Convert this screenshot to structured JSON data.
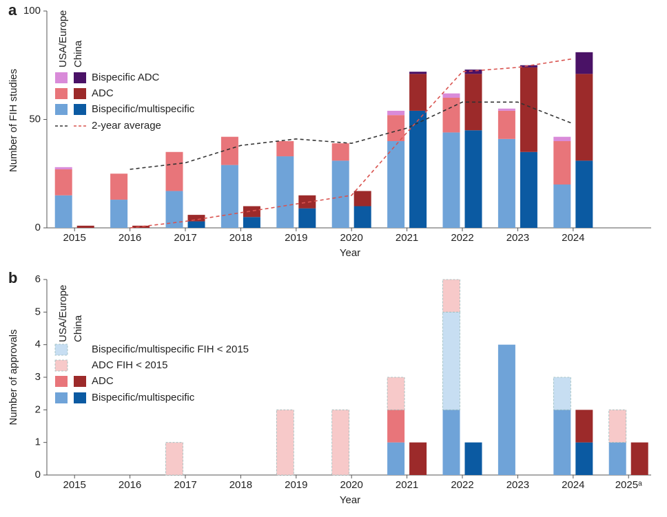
{
  "chart_data": [
    {
      "type": "bar",
      "panel_label": "a",
      "y_label": "Number of FIH studies",
      "x_label": "Year",
      "categories": [
        "2015",
        "2016",
        "2017",
        "2018",
        "2019",
        "2020",
        "2021",
        "2022",
        "2023",
        "2024"
      ],
      "ylim": [
        0,
        100
      ],
      "yticks": [
        0,
        50,
        100
      ],
      "stacked": true,
      "grid": false,
      "legend_groups": [
        "USA/Europe",
        "China"
      ],
      "series": [
        {
          "name": "Bispecific/multispecific",
          "group": "USA/Europe",
          "color": "#6fa3d8",
          "values": [
            15,
            13,
            17,
            29,
            33,
            31,
            40,
            44,
            41,
            20
          ]
        },
        {
          "name": "ADC",
          "group": "USA/Europe",
          "color": "#e8757a",
          "values": [
            12,
            12,
            18,
            13,
            7,
            8,
            12,
            16,
            13,
            20
          ]
        },
        {
          "name": "Bispecific ADC",
          "group": "USA/Europe",
          "color": "#d98bd9",
          "values": [
            1,
            0,
            0,
            0,
            0,
            0,
            2,
            2,
            1,
            2
          ]
        },
        {
          "name": "Bispecific/multispecific",
          "group": "China",
          "color": "#0b5aa2",
          "values": [
            0,
            0,
            3,
            5,
            9,
            10,
            54,
            45,
            35,
            31
          ]
        },
        {
          "name": "ADC",
          "group": "China",
          "color": "#9c2a2a",
          "values": [
            1,
            1,
            3,
            5,
            6,
            7,
            17,
            26,
            39,
            40
          ]
        },
        {
          "name": "Bispecific ADC",
          "group": "China",
          "color": "#4a1266",
          "values": [
            0,
            0,
            0,
            0,
            0,
            0,
            1,
            2,
            1,
            10
          ]
        },
        {
          "name": "2-year average",
          "group": "USA/Europe",
          "type": "line",
          "color": "#333333",
          "values": [
            null,
            27,
            30,
            38,
            41,
            39,
            46,
            58,
            58,
            48
          ]
        },
        {
          "name": "2-year average",
          "group": "China",
          "type": "line",
          "color": "#d9534f",
          "values": [
            null,
            0,
            3,
            7,
            11,
            15,
            44,
            72,
            74,
            78
          ]
        }
      ]
    },
    {
      "type": "bar",
      "panel_label": "b",
      "y_label": "Number of approvals",
      "x_label": "Year",
      "categories": [
        "2015",
        "2016",
        "2017",
        "2018",
        "2019",
        "2020",
        "2021",
        "2022",
        "2023",
        "2024",
        "2025ᵃ"
      ],
      "ylim": [
        0,
        6
      ],
      "yticks": [
        0,
        1,
        2,
        3,
        4,
        5,
        6
      ],
      "stacked": true,
      "grid": false,
      "legend_groups": [
        "USA/Europe",
        "China"
      ],
      "series": [
        {
          "name": "Bispecific/multispecific",
          "group": "USA/Europe",
          "color": "#6fa3d8",
          "values": [
            0,
            0,
            0,
            0,
            0,
            0,
            1,
            2,
            4,
            2,
            1
          ]
        },
        {
          "name": "ADC",
          "group": "USA/Europe",
          "color": "#e8757a",
          "values": [
            0,
            0,
            0,
            0,
            0,
            0,
            1,
            0,
            0,
            0,
            0
          ]
        },
        {
          "name": "Bispecific/multispecific FIH < 2015",
          "group": "USA/Europe",
          "color": "#c7def2",
          "border": "dashed",
          "values": [
            0,
            0,
            0,
            0,
            0,
            0,
            0,
            3,
            0,
            1,
            0
          ]
        },
        {
          "name": "ADC FIH < 2015",
          "group": "USA/Europe",
          "color": "#f7c9c9",
          "border": "dashed",
          "values": [
            0,
            0,
            1,
            0,
            2,
            2,
            1,
            1,
            0,
            0,
            1
          ]
        },
        {
          "name": "Bispecific/multispecific",
          "group": "China",
          "color": "#0b5aa2",
          "values": [
            0,
            0,
            0,
            0,
            0,
            0,
            0,
            1,
            0,
            1,
            0
          ]
        },
        {
          "name": "ADC",
          "group": "China",
          "color": "#9c2a2a",
          "values": [
            0,
            0,
            0,
            0,
            0,
            0,
            1,
            0,
            0,
            1,
            1
          ]
        }
      ]
    }
  ]
}
